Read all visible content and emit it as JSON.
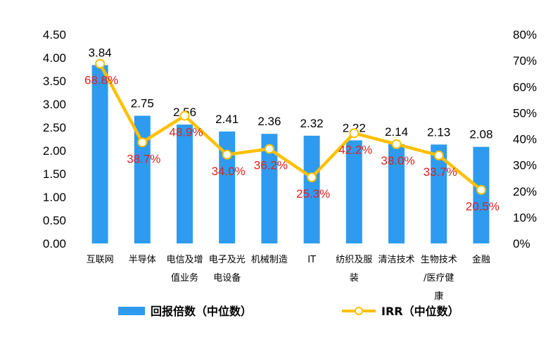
{
  "chart_data": {
    "type": "bar",
    "categories": [
      "互联网",
      "半导体",
      "电信及增值业务",
      "电子及光机电设备",
      "机械制造",
      "IT",
      "纺织及服装",
      "清洁技术",
      "生物技术/医疗健康",
      "金融"
    ],
    "category_lines": [
      [
        "互联网"
      ],
      [
        "半导体"
      ],
      [
        "电信及增",
        "值业务"
      ],
      [
        "电子及光",
        "电设备"
      ],
      [
        "机械制造"
      ],
      [
        "IT"
      ],
      [
        "纺织及服",
        "装"
      ],
      [
        "清洁技术"
      ],
      [
        "生物技术",
        "/医疗健",
        "康"
      ],
      [
        "金融"
      ]
    ],
    "series": [
      {
        "name": "回报倍数（中位数）",
        "type": "bar",
        "axis": "left",
        "color": "#2E9BF0",
        "values": [
          3.84,
          2.75,
          2.56,
          2.41,
          2.36,
          2.32,
          2.22,
          2.14,
          2.13,
          2.08
        ],
        "labels": [
          "3.84",
          "2.75",
          "2.56",
          "2.41",
          "2.36",
          "2.32",
          "2.22",
          "2.14",
          "2.13",
          "2.08"
        ]
      },
      {
        "name": "IRR（中位数）",
        "type": "line",
        "axis": "right",
        "color": "#FFC000",
        "label_color": "#E0201B",
        "values": [
          68.8,
          38.7,
          48.9,
          34.0,
          36.2,
          25.3,
          42.2,
          38.0,
          33.7,
          20.5
        ],
        "labels": [
          "68.8%",
          "38.7%",
          "48.9%",
          "34.0%",
          "36.2%",
          "25.3%",
          "42.2%",
          "38.0%",
          "33.7%",
          "20.5%"
        ]
      }
    ],
    "left_axis": {
      "min": 0,
      "max": 4.5,
      "ticks": [
        0,
        0.5,
        1,
        1.5,
        2,
        2.5,
        3,
        3.5,
        4,
        4.5
      ],
      "tick_labels": [
        "0.00",
        "0.50",
        "1.00",
        "1.50",
        "2.00",
        "2.50",
        "3.00",
        "3.50",
        "4.00",
        "4.50"
      ]
    },
    "right_axis": {
      "min": 0,
      "max": 80,
      "ticks": [
        0,
        10,
        20,
        30,
        40,
        50,
        60,
        70,
        80
      ],
      "tick_labels": [
        "0%",
        "10%",
        "20%",
        "30%",
        "40%",
        "50%",
        "60%",
        "70%",
        "80%"
      ]
    },
    "legend": {
      "position": "bottom",
      "items": [
        "回报倍数（中位数）",
        "IRR（中位数）"
      ]
    },
    "title": "",
    "grid": false
  }
}
